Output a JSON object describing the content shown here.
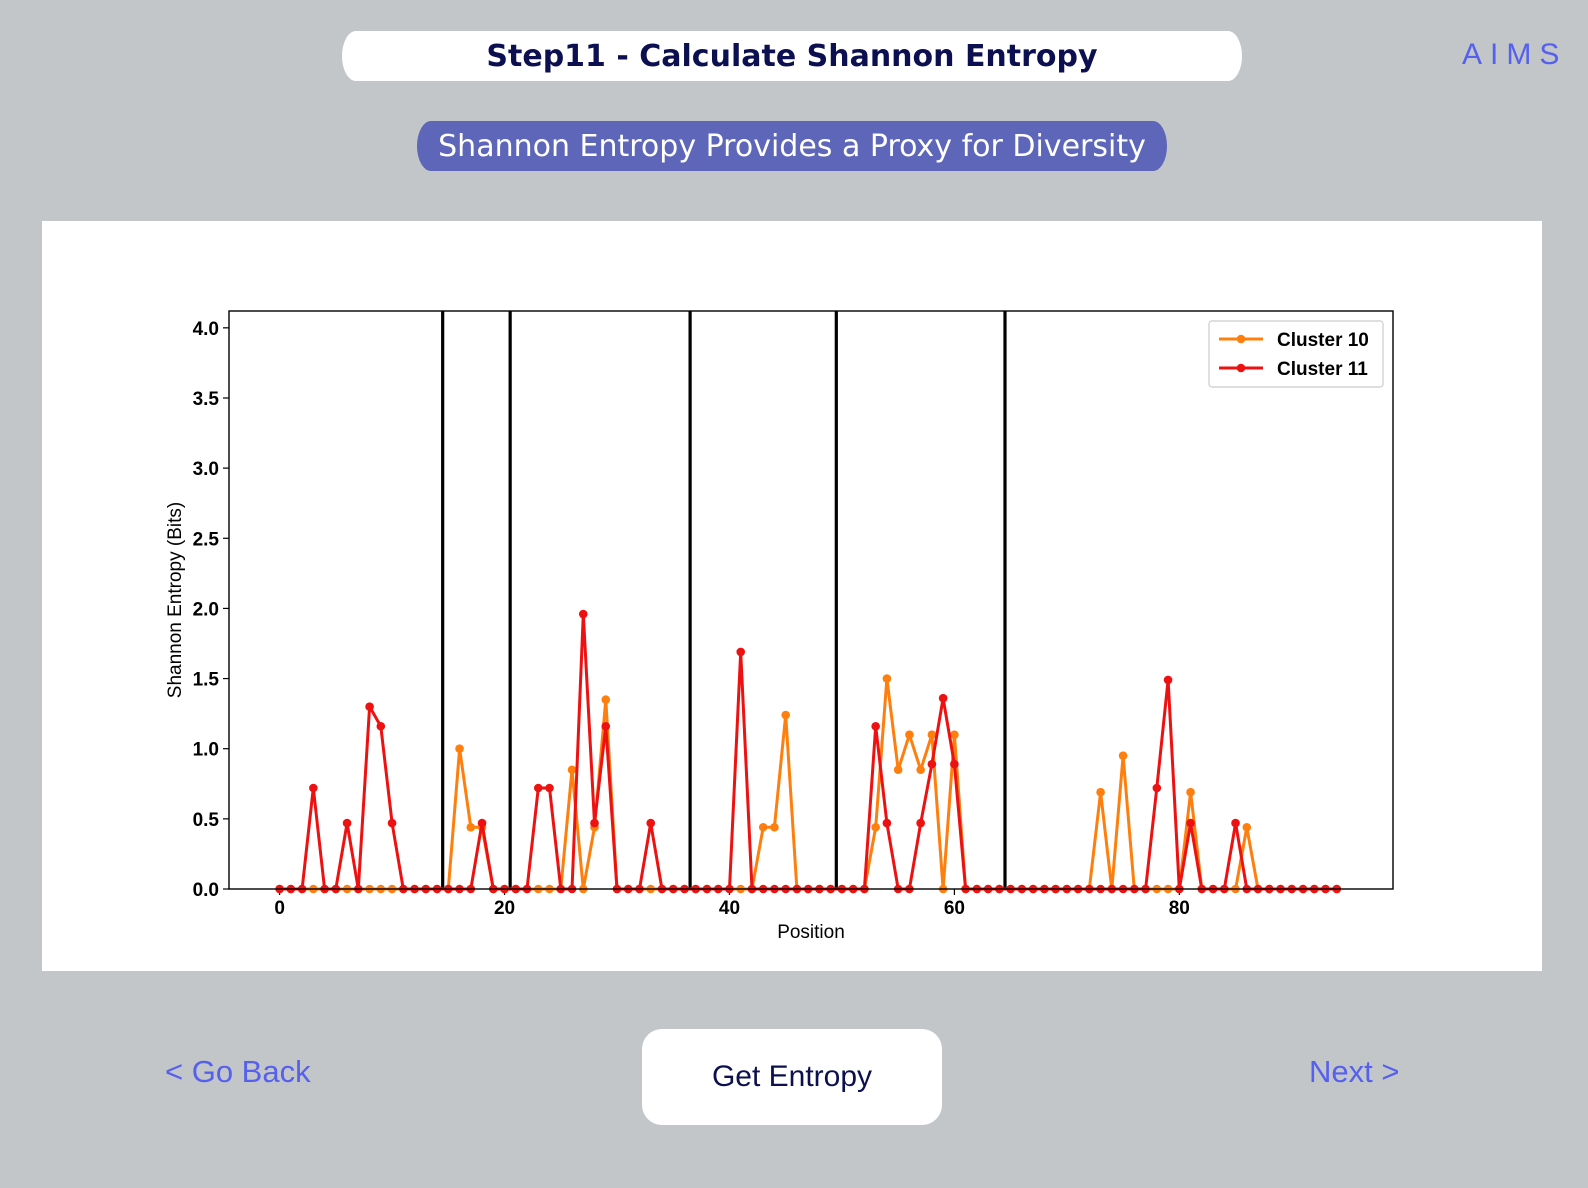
{
  "header": {
    "title": "Step11 - Calculate Shannon Entropy",
    "brand": "AIMS"
  },
  "subtitle": "Shannon Entropy Provides a Proxy for Diversity",
  "nav": {
    "back_label": "< Go Back",
    "action_label": "Get Entropy",
    "next_label": "Next >"
  },
  "colors": {
    "background": "#c3c6c9",
    "title_text": "#0c1050",
    "accent": "#5560ee",
    "subtitle_bg": "#5d66b8",
    "cluster10": "#ff7f0e",
    "cluster11": "#ee1111"
  },
  "chart_data": {
    "type": "line",
    "title": "",
    "xlabel": "Position",
    "ylabel": "Shannon Entropy (Bits)",
    "xlim": [
      -4.5,
      99
    ],
    "ylim": [
      0,
      4.12
    ],
    "xticks": [
      0,
      20,
      40,
      60,
      80
    ],
    "yticks": [
      0.0,
      0.5,
      1.0,
      1.5,
      2.0,
      2.5,
      3.0,
      3.5,
      4.0
    ],
    "ytick_labels": [
      "0.0",
      "0.5",
      "1.0",
      "1.5",
      "2.0",
      "2.5",
      "3.0",
      "3.5",
      "4.0"
    ],
    "vlines": [
      14.5,
      20.5,
      36.5,
      49.5,
      64.5
    ],
    "legend_position": "top-right",
    "series": [
      {
        "name": "Cluster 10",
        "color": "#ff7f0e",
        "values": [
          0,
          0,
          0,
          0,
          0,
          0,
          0,
          0,
          0,
          0,
          0,
          0,
          0,
          0,
          0,
          0,
          1.0,
          0.44,
          0.44,
          0,
          0,
          0,
          0,
          0,
          0,
          0,
          0.85,
          0,
          0.44,
          1.35,
          0,
          0,
          0,
          0,
          0,
          0,
          0,
          0,
          0,
          0,
          0,
          0,
          0,
          0.44,
          0.44,
          1.24,
          0,
          0,
          0,
          0,
          0,
          0,
          0,
          0.44,
          1.5,
          0.85,
          1.1,
          0.85,
          1.1,
          0,
          1.1,
          0,
          0,
          0,
          0,
          0,
          0,
          0,
          0,
          0,
          0,
          0,
          0,
          0.69,
          0,
          0.95,
          0,
          0,
          0,
          0,
          0,
          0.69,
          0,
          0,
          0,
          0,
          0.44,
          0,
          0,
          0,
          0,
          0,
          0,
          0,
          0
        ]
      },
      {
        "name": "Cluster 11",
        "color": "#ee1111",
        "values": [
          0,
          0,
          0,
          0.72,
          0,
          0,
          0.47,
          0,
          1.3,
          1.16,
          0.47,
          0,
          0,
          0,
          0,
          0,
          0,
          0,
          0.47,
          0,
          0,
          0,
          0,
          0.72,
          0.72,
          0,
          0,
          1.96,
          0.47,
          1.16,
          0,
          0,
          0,
          0.47,
          0,
          0,
          0,
          0,
          0,
          0,
          0,
          1.69,
          0,
          0,
          0,
          0,
          0,
          0,
          0,
          0,
          0,
          0,
          0,
          1.16,
          0.47,
          0,
          0,
          0.47,
          0.89,
          1.36,
          0.89,
          0,
          0,
          0,
          0,
          0,
          0,
          0,
          0,
          0,
          0,
          0,
          0,
          0,
          0,
          0,
          0,
          0,
          0.72,
          1.49,
          0,
          0.47,
          0,
          0,
          0,
          0.47,
          0,
          0,
          0,
          0,
          0,
          0,
          0,
          0,
          0
        ]
      }
    ]
  }
}
